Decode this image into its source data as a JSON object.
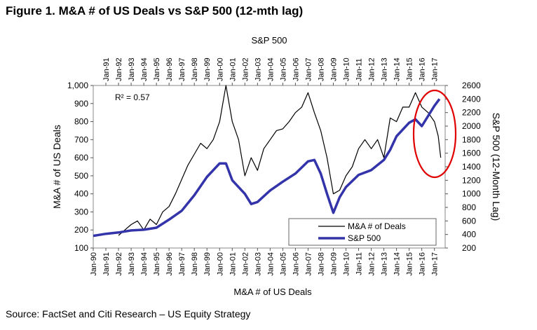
{
  "figure_title": "Figure 1. M&A # of US Deals vs S&P 500 (12-mth lag)",
  "source": "Source: FactSet and Citi Research – US Equity Strategy",
  "chart_data": {
    "type": "line",
    "title": "Figure 1. M&A # of US Deals vs S&P 500 (12-mth lag)",
    "xlabel": "M&A # of US Deals",
    "x2label": "S&P 500",
    "ylabel": "M&A # of US Deals",
    "y2label": "S&P 500 (12-Month Lag)",
    "annotation": "R² = 0.57",
    "highlight": "red ellipse around Jan-16 to Jan-17",
    "ylim": [
      100,
      1000
    ],
    "y2lim": [
      200,
      2600
    ],
    "yticks": [
      "100",
      "200",
      "300",
      "400",
      "500",
      "600",
      "700",
      "800",
      "900",
      "1,000"
    ],
    "y2ticks": [
      "200",
      "400",
      "600",
      "800",
      "1000",
      "1200",
      "1400",
      "1600",
      "1800",
      "2000",
      "2200",
      "2400",
      "2600"
    ],
    "x_bottom_labels": [
      "Jan-90",
      "Jan-91",
      "Jan-92",
      "Jan-93",
      "Jan-94",
      "Jan-95",
      "Jan-96",
      "Jan-97",
      "Jan-98",
      "Jan-99",
      "Jan-00",
      "Jan-01",
      "Jan-02",
      "Jan-03",
      "Jan-04",
      "Jan-05",
      "Jan-06",
      "Jan-07",
      "Jan-08",
      "Jan-09",
      "Jan-10",
      "Jan-11",
      "Jan-12",
      "Jan-13",
      "Jan-14",
      "Jan-15",
      "Jan-16",
      "Jan-17"
    ],
    "x_top_labels": [
      "Jan-91",
      "Jan-92",
      "Jan-93",
      "Jan-94",
      "Jan-95",
      "Jan-96",
      "Jan-97",
      "Jan-98",
      "Jan-99",
      "Jan-00",
      "Jan-01",
      "Jan-02",
      "Jan-03",
      "Jan-04",
      "Jan-05",
      "Jan-06",
      "Jan-07",
      "Jan-08",
      "Jan-09",
      "Jan-10",
      "Jan-11",
      "Jan-12",
      "Jan-13",
      "Jan-14",
      "Jan-15",
      "Jan-16",
      "Jan-17"
    ],
    "series": [
      {
        "name": "M&A # of Deals",
        "axis": "left",
        "color": "#000000",
        "points": [
          [
            1992.0,
            170
          ],
          [
            1992.5,
            200
          ],
          [
            1993.0,
            230
          ],
          [
            1993.5,
            250
          ],
          [
            1994.0,
            200
          ],
          [
            1994.5,
            260
          ],
          [
            1995.0,
            230
          ],
          [
            1995.5,
            300
          ],
          [
            1996.0,
            330
          ],
          [
            1996.5,
            400
          ],
          [
            1997.0,
            480
          ],
          [
            1997.5,
            560
          ],
          [
            1998.0,
            620
          ],
          [
            1998.5,
            680
          ],
          [
            1999.0,
            650
          ],
          [
            1999.5,
            700
          ],
          [
            2000.0,
            800
          ],
          [
            2000.5,
            1000
          ],
          [
            2001.0,
            800
          ],
          [
            2001.5,
            700
          ],
          [
            2002.0,
            500
          ],
          [
            2002.5,
            600
          ],
          [
            2003.0,
            530
          ],
          [
            2003.5,
            650
          ],
          [
            2004.0,
            700
          ],
          [
            2004.5,
            750
          ],
          [
            2005.0,
            760
          ],
          [
            2005.5,
            800
          ],
          [
            2006.0,
            850
          ],
          [
            2006.5,
            880
          ],
          [
            2007.0,
            960
          ],
          [
            2007.5,
            850
          ],
          [
            2008.0,
            750
          ],
          [
            2008.5,
            600
          ],
          [
            2009.0,
            400
          ],
          [
            2009.5,
            420
          ],
          [
            2010.0,
            500
          ],
          [
            2010.5,
            550
          ],
          [
            2011.0,
            650
          ],
          [
            2011.5,
            700
          ],
          [
            2012.0,
            650
          ],
          [
            2012.5,
            700
          ],
          [
            2013.0,
            600
          ],
          [
            2013.5,
            820
          ],
          [
            2014.0,
            800
          ],
          [
            2014.5,
            880
          ],
          [
            2015.0,
            880
          ],
          [
            2015.5,
            960
          ],
          [
            2016.0,
            880
          ],
          [
            2016.5,
            850
          ],
          [
            2017.0,
            800
          ],
          [
            2017.3,
            720
          ],
          [
            2017.5,
            600
          ]
        ]
      },
      {
        "name": "S&P 500",
        "axis": "right",
        "color": "#3333aa",
        "points": [
          [
            1990.0,
            380
          ],
          [
            1991.0,
            410
          ],
          [
            1992.0,
            430
          ],
          [
            1993.0,
            460
          ],
          [
            1994.0,
            470
          ],
          [
            1995.0,
            500
          ],
          [
            1996.0,
            620
          ],
          [
            1997.0,
            750
          ],
          [
            1998.0,
            980
          ],
          [
            1999.0,
            1250
          ],
          [
            2000.0,
            1450
          ],
          [
            2000.5,
            1450
          ],
          [
            2001.0,
            1200
          ],
          [
            2002.0,
            1000
          ],
          [
            2002.5,
            850
          ],
          [
            2003.0,
            880
          ],
          [
            2004.0,
            1050
          ],
          [
            2005.0,
            1180
          ],
          [
            2006.0,
            1300
          ],
          [
            2007.0,
            1480
          ],
          [
            2007.5,
            1500
          ],
          [
            2008.0,
            1300
          ],
          [
            2008.5,
            1000
          ],
          [
            2009.0,
            720
          ],
          [
            2009.5,
            950
          ],
          [
            2010.0,
            1100
          ],
          [
            2011.0,
            1280
          ],
          [
            2012.0,
            1350
          ],
          [
            2013.0,
            1500
          ],
          [
            2013.5,
            1650
          ],
          [
            2014.0,
            1850
          ],
          [
            2015.0,
            2050
          ],
          [
            2015.5,
            2100
          ],
          [
            2016.0,
            2000
          ],
          [
            2016.5,
            2150
          ],
          [
            2017.0,
            2300
          ],
          [
            2017.4,
            2400
          ]
        ]
      }
    ]
  }
}
